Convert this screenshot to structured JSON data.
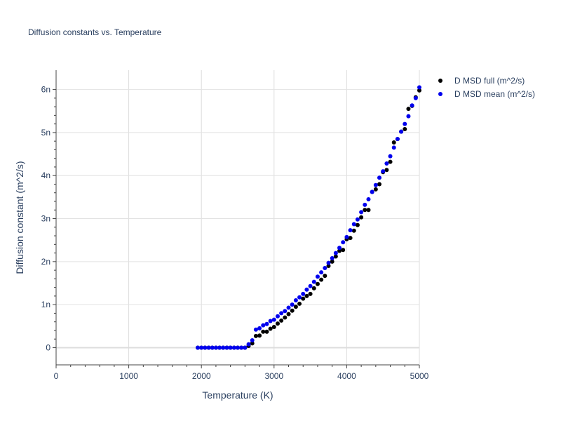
{
  "chart_data": {
    "type": "scatter",
    "title": "Diffusion constants vs. Temperature",
    "xlabel": "Temperature (K)",
    "ylabel": "Diffusion constant (m^2/s)",
    "xlim": [
      0,
      5000
    ],
    "ylim": [
      -0.4,
      6.45
    ],
    "xticks": [
      0,
      1000,
      2000,
      3000,
      4000,
      5000
    ],
    "xtick_labels": [
      "0",
      "1000",
      "2000",
      "3000",
      "4000",
      "5000"
    ],
    "yticks": [
      0,
      1,
      2,
      3,
      4,
      5,
      6
    ],
    "ytick_labels": [
      "0",
      "1n",
      "2n",
      "3n",
      "4n",
      "5n",
      "6n"
    ],
    "grid": true,
    "legend_position": "top-right",
    "series": [
      {
        "name": "D MSD full (m^2/s)",
        "color": "#000000",
        "x": [
          1950,
          2000,
          2050,
          2100,
          2150,
          2200,
          2250,
          2300,
          2350,
          2400,
          2450,
          2500,
          2550,
          2600,
          2650,
          2700,
          2750,
          2800,
          2850,
          2900,
          2950,
          3000,
          3050,
          3100,
          3150,
          3200,
          3250,
          3300,
          3350,
          3400,
          3450,
          3500,
          3550,
          3600,
          3650,
          3700,
          3750,
          3800,
          3850,
          3900,
          3950,
          4000,
          4050,
          4100,
          4150,
          4200,
          4250,
          4300,
          4350,
          4400,
          4450,
          4500,
          4550,
          4600,
          4650,
          4700,
          4750,
          4800,
          4850,
          4900,
          4950,
          5000
        ],
        "y": [
          0,
          0,
          0,
          0,
          0,
          0,
          0,
          0,
          0,
          0,
          0,
          0,
          0,
          0,
          0.04,
          0.1,
          0.27,
          0.28,
          0.37,
          0.37,
          0.44,
          0.48,
          0.56,
          0.63,
          0.7,
          0.78,
          0.86,
          0.95,
          1.02,
          1.14,
          1.2,
          1.25,
          1.38,
          1.48,
          1.58,
          1.67,
          1.9,
          2.0,
          2.12,
          2.25,
          2.27,
          2.52,
          2.55,
          2.72,
          2.85,
          3.03,
          3.2,
          3.2,
          3.62,
          3.68,
          3.8,
          4.08,
          4.13,
          4.32,
          4.77,
          4.85,
          5.02,
          5.08,
          5.55,
          5.62,
          5.82,
          5.98
        ]
      },
      {
        "name": "D MSD mean (m^2/s)",
        "color": "#0000ee",
        "x": [
          1950,
          2000,
          2050,
          2100,
          2150,
          2200,
          2250,
          2300,
          2350,
          2400,
          2450,
          2500,
          2550,
          2600,
          2650,
          2700,
          2750,
          2800,
          2850,
          2900,
          2950,
          3000,
          3050,
          3100,
          3150,
          3200,
          3250,
          3300,
          3350,
          3400,
          3450,
          3500,
          3550,
          3600,
          3650,
          3700,
          3750,
          3800,
          3850,
          3900,
          3950,
          4000,
          4050,
          4100,
          4150,
          4200,
          4250,
          4300,
          4350,
          4400,
          4450,
          4500,
          4550,
          4600,
          4650,
          4700,
          4750,
          4800,
          4850,
          4900,
          4950,
          5000
        ],
        "y": [
          0,
          0,
          0,
          0,
          0,
          0,
          0,
          0,
          0,
          0,
          0,
          0,
          0,
          0,
          0.08,
          0.17,
          0.42,
          0.45,
          0.52,
          0.55,
          0.62,
          0.65,
          0.73,
          0.8,
          0.85,
          0.93,
          1.0,
          1.1,
          1.17,
          1.25,
          1.35,
          1.43,
          1.53,
          1.65,
          1.75,
          1.85,
          1.97,
          2.08,
          2.2,
          2.32,
          2.45,
          2.57,
          2.73,
          2.87,
          2.98,
          3.15,
          3.32,
          3.45,
          3.62,
          3.78,
          3.95,
          4.1,
          4.28,
          4.45,
          4.65,
          4.85,
          5.02,
          5.2,
          5.38,
          5.63,
          5.8,
          6.05
        ]
      }
    ]
  }
}
